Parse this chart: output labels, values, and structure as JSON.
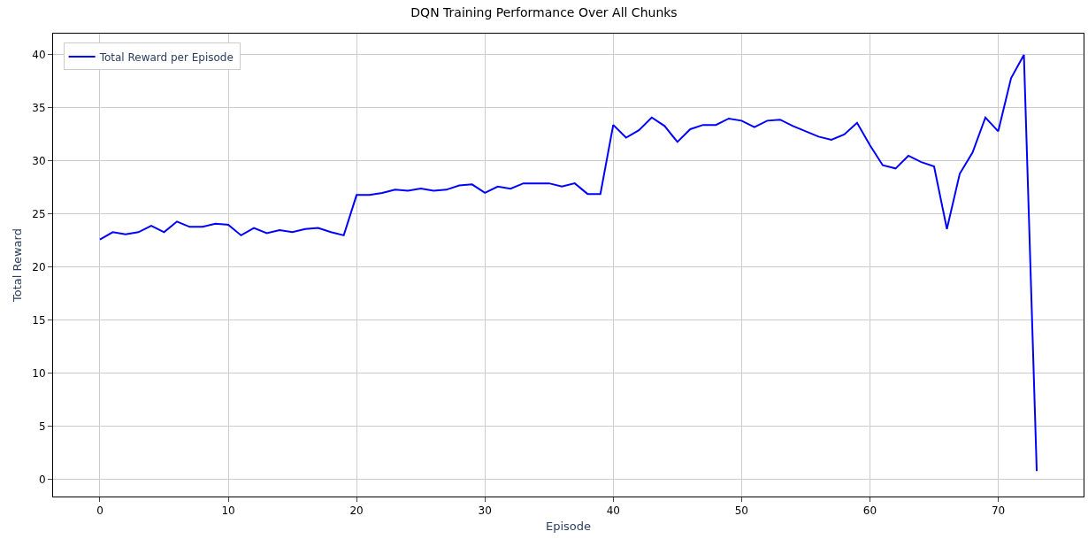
{
  "chart_data": {
    "type": "line",
    "title": "DQN Training Performance Over All Chunks",
    "xlabel": "Episode",
    "ylabel": "Total Reward",
    "x": [
      0,
      1,
      2,
      3,
      4,
      5,
      6,
      7,
      8,
      9,
      10,
      11,
      12,
      13,
      14,
      15,
      16,
      17,
      18,
      19,
      20,
      21,
      22,
      23,
      24,
      25,
      26,
      27,
      28,
      29,
      30,
      31,
      32,
      33,
      34,
      35,
      36,
      37,
      38,
      39,
      40,
      41,
      42,
      43,
      44,
      45,
      46,
      47,
      48,
      49,
      50,
      51,
      52,
      53,
      54,
      55,
      56,
      57,
      58,
      59,
      60,
      61,
      62,
      63,
      64,
      65,
      66,
      67,
      68,
      69,
      70,
      71,
      72,
      73
    ],
    "series": [
      {
        "name": "Total Reward per Episode",
        "color": "#0000ff",
        "values": [
          22.6,
          23.3,
          23.1,
          23.3,
          23.9,
          23.3,
          24.3,
          23.8,
          23.8,
          24.1,
          24.0,
          23.0,
          23.7,
          23.2,
          23.5,
          23.3,
          23.6,
          23.7,
          23.3,
          23.0,
          26.8,
          26.8,
          27.0,
          27.3,
          27.2,
          27.4,
          27.2,
          27.3,
          27.7,
          27.8,
          27.0,
          27.6,
          27.4,
          27.9,
          27.9,
          27.9,
          27.6,
          27.9,
          26.9,
          26.9,
          33.4,
          32.2,
          32.9,
          34.1,
          33.3,
          31.8,
          33.0,
          33.4,
          33.4,
          34.0,
          33.8,
          33.2,
          33.8,
          33.9,
          33.3,
          32.8,
          32.3,
          32.0,
          32.5,
          33.6,
          31.5,
          29.6,
          29.3,
          30.5,
          29.9,
          29.5,
          23.6,
          28.8,
          30.8,
          34.1,
          32.8,
          37.8,
          40.0,
          0.8
        ]
      }
    ],
    "xlim": [
      -3.65,
      76.65
    ],
    "ylim": [
      -1.6,
      42.0
    ],
    "xticks": [
      0,
      10,
      20,
      30,
      40,
      50,
      60,
      70
    ],
    "yticks": [
      0,
      5,
      10,
      15,
      20,
      25,
      30,
      35,
      40
    ],
    "grid": true,
    "legend": "top left",
    "marker": "none",
    "line_style": "solid"
  }
}
